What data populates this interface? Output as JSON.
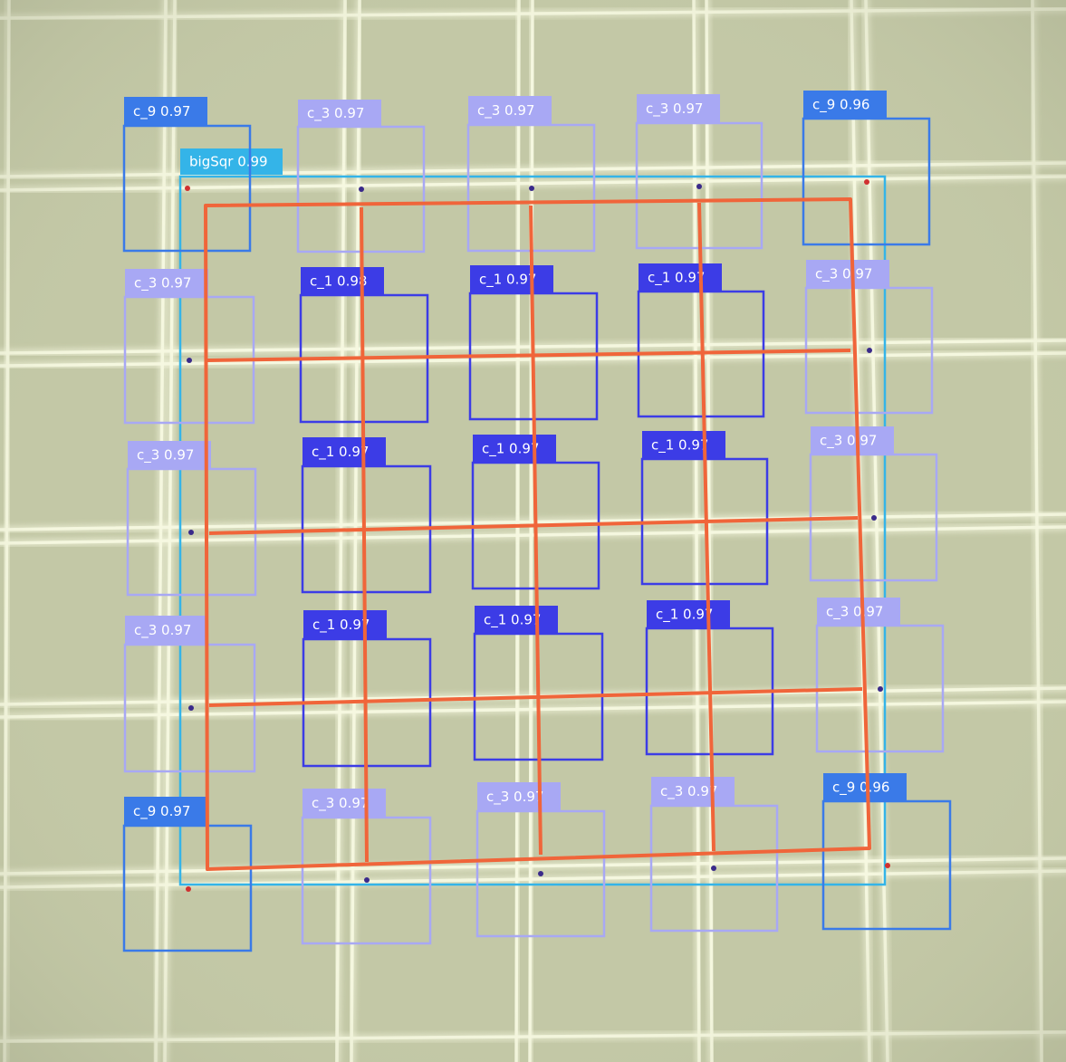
{
  "image": {
    "description_free": true,
    "colors": {
      "background": "#c3c8a6",
      "grid_line_glow": "#f6f8e0",
      "big_square_box": "#34b4e8",
      "c9_box": "#3a7ae8",
      "c3_box": "#a8a8f4",
      "c1_box": "#3c3ce6",
      "fitted_grid": "#f0653a",
      "corner_point_red": "#d03030",
      "center_point_purple": "#3a2a8a"
    }
  },
  "detections": [
    {
      "id": "bigsqr",
      "class": "bigSqr",
      "score": "0.99",
      "label": "bigSqr 0.99"
    },
    {
      "id": "c9-tl",
      "class": "c_9",
      "score": "0.97",
      "label": "c_9 0.97"
    },
    {
      "id": "c3-t1",
      "class": "c_3",
      "score": "0.97",
      "label": "c_3 0.97"
    },
    {
      "id": "c3-t2",
      "class": "c_3",
      "score": "0.97",
      "label": "c_3 0.97"
    },
    {
      "id": "c3-t3",
      "class": "c_3",
      "score": "0.97",
      "label": "c_3 0.97"
    },
    {
      "id": "c9-tr",
      "class": "c_9",
      "score": "0.96",
      "label": "c_9 0.96"
    },
    {
      "id": "c3-l1",
      "class": "c_3",
      "score": "0.97",
      "label": "c_3 0.97"
    },
    {
      "id": "c1-11",
      "class": "c_1",
      "score": "0.98",
      "label": "c_1 0.98"
    },
    {
      "id": "c1-12",
      "class": "c_1",
      "score": "0.97",
      "label": "c_1 0.97"
    },
    {
      "id": "c1-13",
      "class": "c_1",
      "score": "0.97",
      "label": "c_1 0.97"
    },
    {
      "id": "c3-r1",
      "class": "c_3",
      "score": "0.97",
      "label": "c_3 0.97"
    },
    {
      "id": "c3-l2",
      "class": "c_3",
      "score": "0.97",
      "label": "c_3 0.97"
    },
    {
      "id": "c1-21",
      "class": "c_1",
      "score": "0.97",
      "label": "c_1 0.97"
    },
    {
      "id": "c1-22",
      "class": "c_1",
      "score": "0.97",
      "label": "c_1 0.97"
    },
    {
      "id": "c1-23",
      "class": "c_1",
      "score": "0.97",
      "label": "c_1 0.97"
    },
    {
      "id": "c3-r2",
      "class": "c_3",
      "score": "0.97",
      "label": "c_3 0.97"
    },
    {
      "id": "c3-l3",
      "class": "c_3",
      "score": "0.97",
      "label": "c_3 0.97"
    },
    {
      "id": "c1-31",
      "class": "c_1",
      "score": "0.97",
      "label": "c_1 0.97"
    },
    {
      "id": "c1-32",
      "class": "c_1",
      "score": "0.97",
      "label": "c_1 0.97"
    },
    {
      "id": "c1-33",
      "class": "c_1",
      "score": "0.97",
      "label": "c_1 0.97"
    },
    {
      "id": "c3-r3",
      "class": "c_3",
      "score": "0.97",
      "label": "c_3 0.97"
    },
    {
      "id": "c9-bl",
      "class": "c_9",
      "score": "0.97",
      "label": "c_9 0.97"
    },
    {
      "id": "c3-b1",
      "class": "c_3",
      "score": "0.97",
      "label": "c_3 0.97"
    },
    {
      "id": "c3-b2",
      "class": "c_3",
      "score": "0.97",
      "label": "c_3 0.97"
    },
    {
      "id": "c3-b3",
      "class": "c_3",
      "score": "0.97",
      "label": "c_3 0.97"
    },
    {
      "id": "c9-br",
      "class": "c_9",
      "score": "0.96",
      "label": "c_9 0.96"
    }
  ]
}
